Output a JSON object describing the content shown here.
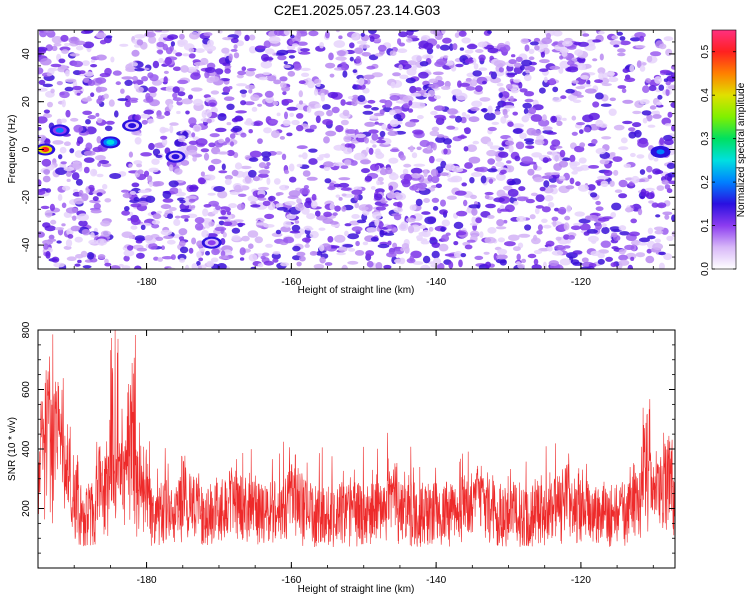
{
  "page": {
    "title": "C2E1.2025.057.23.14.G03"
  },
  "chart_data": [
    {
      "type": "heatmap",
      "title": "C2E1.2025.057.23.14.G03",
      "xlabel": "Height of straight line (km)",
      "ylabel": "Frequency (Hz)",
      "xlim": [
        -195,
        -107
      ],
      "ylim": [
        -50,
        50
      ],
      "xticks": [
        -180,
        -160,
        -140,
        -120
      ],
      "yticks": [
        -40,
        -20,
        0,
        20,
        40
      ],
      "colorbar": {
        "label": "Normalized spectral amplitude",
        "range": [
          0,
          0.55
        ],
        "ticks": [
          0.0,
          0.1,
          0.2,
          0.3,
          0.4,
          0.5
        ],
        "colormap": [
          "#ffffff",
          "#d8b8f8",
          "#8c3cf0",
          "#2a10e0",
          "#0080ff",
          "#00e0e0",
          "#00e060",
          "#80f000",
          "#e0e000",
          "#ff8000",
          "#ff2020",
          "#ff3080"
        ]
      },
      "hotspots": [
        {
          "x": -194,
          "y": 0,
          "value": 0.5
        },
        {
          "x": -192,
          "y": 8,
          "value": 0.18
        },
        {
          "x": -185,
          "y": 3,
          "value": 0.27
        },
        {
          "x": -182,
          "y": 10,
          "value": 0.15
        },
        {
          "x": -176,
          "y": -3,
          "value": 0.15
        },
        {
          "x": -171,
          "y": -39,
          "value": 0.12
        },
        {
          "x": -109,
          "y": -1,
          "value": 0.22
        }
      ]
    },
    {
      "type": "line",
      "xlabel": "Height of straight line (km)",
      "ylabel": "SNR (10 * v/v)",
      "xlim": [
        -195,
        -107
      ],
      "ylim": [
        0,
        800
      ],
      "xticks": [
        -180,
        -160,
        -140,
        -120
      ],
      "yticks": [
        200,
        400,
        600,
        800
      ],
      "color": "#ee2a2a",
      "baseline_mean": 180,
      "peaks": [
        {
          "x": -194,
          "y": 500
        },
        {
          "x": -193,
          "y": 700
        },
        {
          "x": -192,
          "y": 640
        },
        {
          "x": -184.5,
          "y": 800
        },
        {
          "x": -182,
          "y": 790
        },
        {
          "x": -175,
          "y": 390
        },
        {
          "x": -168,
          "y": 370
        },
        {
          "x": -160,
          "y": 380
        },
        {
          "x": -146,
          "y": 360
        },
        {
          "x": -134,
          "y": 390
        },
        {
          "x": -122,
          "y": 370
        },
        {
          "x": -111,
          "y": 540
        },
        {
          "x": -108,
          "y": 480
        }
      ]
    }
  ]
}
